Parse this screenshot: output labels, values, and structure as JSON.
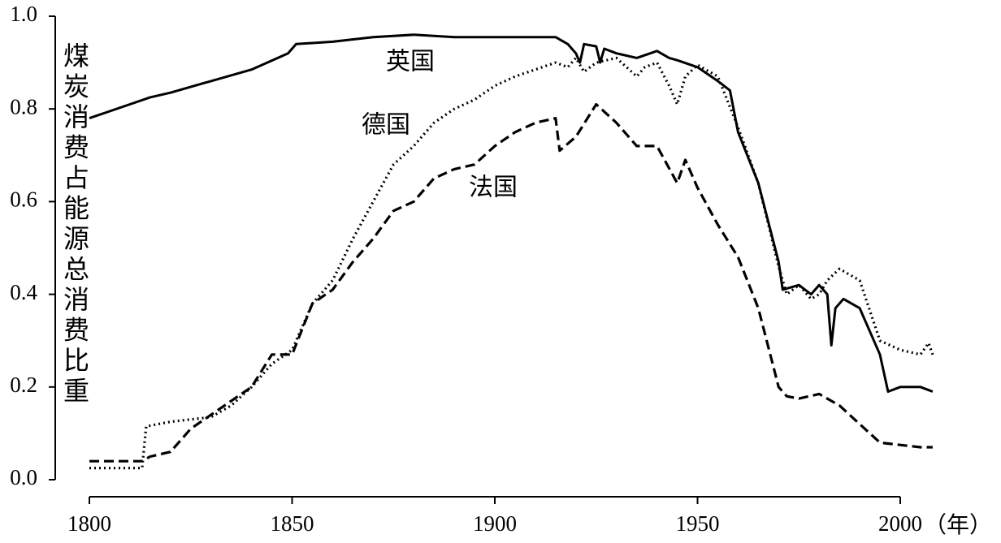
{
  "chart_data": {
    "type": "line",
    "y_label": "煤炭消费占能源总消费比重",
    "x_label": "（年）",
    "xlim": [
      1800,
      2010
    ],
    "xticks": [
      1800,
      1850,
      1900,
      1950,
      2000
    ],
    "ylim": [
      0,
      1
    ],
    "yticks": [
      {
        "value": 0,
        "label": "0.0"
      },
      0.2,
      0.4,
      0.6,
      0.8,
      {
        "value": 1,
        "label": "1.0"
      }
    ],
    "series": [
      {
        "name": "英国",
        "color": "#000000",
        "style": "solid",
        "x": [
          1800,
          1810,
          1815,
          1820,
          1830,
          1840,
          1849,
          1851,
          1860,
          1870,
          1880,
          1890,
          1900,
          1910,
          1915,
          1918,
          1920,
          1921,
          1922,
          1925,
          1926,
          1927,
          1930,
          1935,
          1940,
          1943,
          1945,
          1950,
          1955,
          1958,
          1960,
          1965,
          1970,
          1971,
          1975,
          1978,
          1980,
          1982,
          1983,
          1984,
          1986,
          1990,
          1995,
          1997,
          2000,
          2005,
          2008
        ],
        "values": [
          0.78,
          0.81,
          0.825,
          0.835,
          0.86,
          0.885,
          0.92,
          0.94,
          0.945,
          0.955,
          0.96,
          0.955,
          0.955,
          0.955,
          0.955,
          0.94,
          0.92,
          0.9,
          0.94,
          0.935,
          0.9,
          0.93,
          0.92,
          0.91,
          0.925,
          0.91,
          0.905,
          0.89,
          0.86,
          0.84,
          0.75,
          0.64,
          0.47,
          0.41,
          0.42,
          0.4,
          0.42,
          0.4,
          0.29,
          0.37,
          0.39,
          0.37,
          0.27,
          0.19,
          0.2,
          0.2,
          0.19
        ]
      },
      {
        "name": "德国",
        "color": "#000000",
        "style": "dotted",
        "x": [
          1800,
          1813,
          1814,
          1820,
          1830,
          1835,
          1840,
          1845,
          1850,
          1855,
          1860,
          1865,
          1870,
          1875,
          1880,
          1885,
          1890,
          1895,
          1900,
          1905,
          1910,
          1915,
          1918,
          1920,
          1922,
          1925,
          1930,
          1935,
          1937,
          1940,
          1943,
          1945,
          1947,
          1950,
          1955,
          1960,
          1965,
          1970,
          1972,
          1975,
          1978,
          1980,
          1982,
          1985,
          1990,
          1995,
          2000,
          2005,
          2007,
          2008
        ],
        "values": [
          0.025,
          0.025,
          0.115,
          0.125,
          0.135,
          0.16,
          0.2,
          0.25,
          0.28,
          0.38,
          0.43,
          0.52,
          0.6,
          0.68,
          0.72,
          0.77,
          0.8,
          0.82,
          0.85,
          0.87,
          0.885,
          0.9,
          0.89,
          0.91,
          0.88,
          0.9,
          0.91,
          0.87,
          0.89,
          0.9,
          0.85,
          0.81,
          0.87,
          0.895,
          0.87,
          0.76,
          0.64,
          0.46,
          0.4,
          0.42,
          0.39,
          0.4,
          0.43,
          0.455,
          0.43,
          0.3,
          0.28,
          0.27,
          0.295,
          0.27
        ]
      },
      {
        "name": "法国",
        "color": "#000000",
        "style": "dashed",
        "x": [
          1800,
          1813,
          1815,
          1820,
          1825,
          1830,
          1835,
          1840,
          1845,
          1850,
          1855,
          1860,
          1865,
          1870,
          1875,
          1880,
          1885,
          1890,
          1895,
          1900,
          1905,
          1910,
          1915,
          1916,
          1920,
          1925,
          1930,
          1935,
          1940,
          1945,
          1947,
          1950,
          1955,
          1960,
          1965,
          1970,
          1972,
          1975,
          1980,
          1985,
          1990,
          1995,
          2000,
          2005,
          2008
        ],
        "values": [
          0.04,
          0.04,
          0.05,
          0.06,
          0.11,
          0.14,
          0.17,
          0.2,
          0.27,
          0.27,
          0.38,
          0.41,
          0.47,
          0.52,
          0.58,
          0.6,
          0.65,
          0.67,
          0.68,
          0.72,
          0.75,
          0.77,
          0.78,
          0.71,
          0.74,
          0.81,
          0.77,
          0.72,
          0.72,
          0.64,
          0.69,
          0.63,
          0.55,
          0.48,
          0.37,
          0.2,
          0.18,
          0.175,
          0.185,
          0.16,
          0.12,
          0.08,
          0.075,
          0.07,
          0.07
        ]
      }
    ]
  }
}
